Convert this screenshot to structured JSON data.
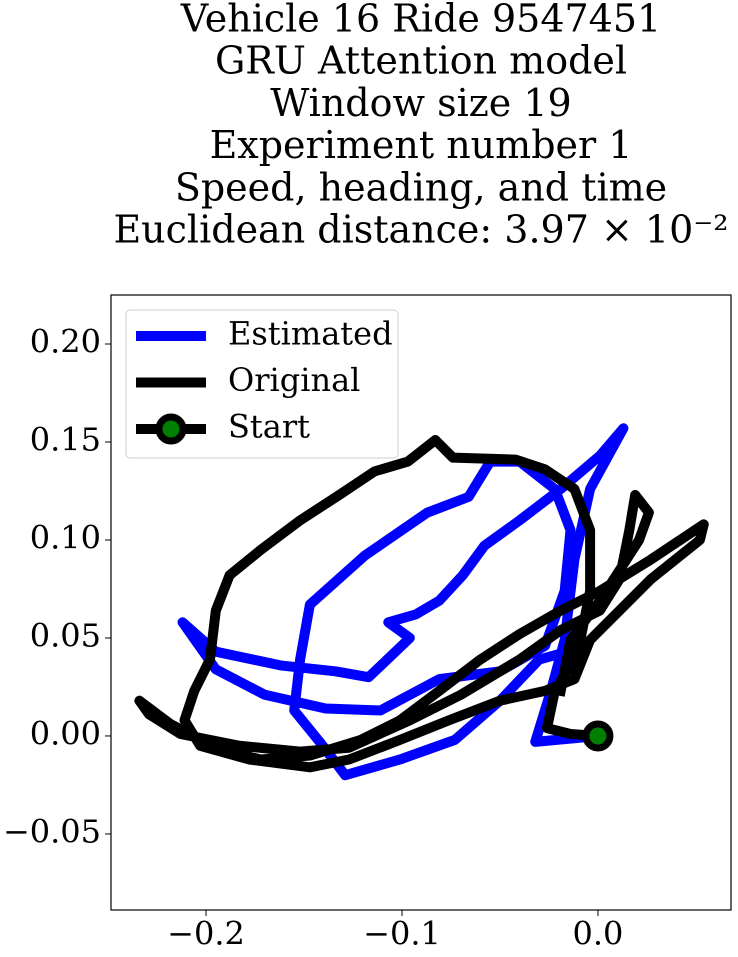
{
  "chart_data": {
    "type": "line",
    "title": [
      "Vehicle 16 Ride 9547451",
      "GRU Attention model",
      "Window size 19",
      "Experiment number 1",
      "Speed, heading, and time",
      "Euclidean distance: 3.97 × 10⁻²"
    ],
    "xlim": [
      -0.2485,
      0.0679
    ],
    "ylim": [
      -0.0888,
      0.225
    ],
    "xticks": [
      {
        "value": -0.2,
        "label": "−0.2"
      },
      {
        "value": -0.1,
        "label": "−0.1"
      },
      {
        "value": 0,
        "label": "0.0"
      }
    ],
    "yticks": [
      {
        "value": -0.05,
        "label": "−0.05"
      },
      {
        "value": 0,
        "label": "0.00"
      },
      {
        "value": 0.05,
        "label": "0.05"
      },
      {
        "value": 0.1,
        "label": "0.10"
      },
      {
        "value": 0.15,
        "label": "0.15"
      },
      {
        "value": 0.2,
        "label": "0.20"
      }
    ],
    "legend": "upper left",
    "series": [
      {
        "name": "Estimated",
        "color": "#0000ff",
        "x": [
          0,
          -0.032,
          -0.024,
          -0.017,
          -0.012,
          -0.004,
          0.013,
          0.001,
          -0.019,
          -0.04,
          -0.058,
          -0.069,
          -0.081,
          -0.093,
          -0.107,
          -0.096,
          -0.117,
          -0.134,
          -0.162,
          -0.195,
          -0.212,
          -0.195,
          -0.17,
          -0.139,
          -0.111,
          -0.081,
          -0.05,
          -0.027,
          -0.017,
          -0.014,
          -0.022,
          -0.04,
          -0.055,
          -0.066,
          -0.087,
          -0.119,
          -0.147,
          -0.152,
          -0.155,
          -0.142,
          -0.129,
          -0.101,
          -0.073,
          -0.05,
          -0.03,
          -0.012
        ],
        "y": [
          0,
          -0.003,
          0.023,
          0.049,
          0.09,
          0.126,
          0.157,
          0.143,
          0.126,
          0.11,
          0.097,
          0.082,
          0.069,
          0.062,
          0.058,
          0.05,
          0.03,
          0.033,
          0.036,
          0.043,
          0.058,
          0.034,
          0.021,
          0.014,
          0.013,
          0.029,
          0.033,
          0.046,
          0.074,
          0.105,
          0.126,
          0.14,
          0.14,
          0.122,
          0.114,
          0.092,
          0.067,
          0.039,
          0.013,
          -0.003,
          -0.02,
          -0.012,
          -0.002,
          0.018,
          0.039,
          0.044
        ]
      },
      {
        "name": "Original",
        "color": "#000000",
        "x": [
          0,
          -0.014,
          -0.026,
          -0.022,
          -0.014,
          -0.009,
          -0.004,
          -0.004,
          -0.012,
          -0.027,
          -0.042,
          -0.074,
          -0.078,
          -0.083,
          -0.097,
          -0.114,
          -0.132,
          -0.152,
          -0.172,
          -0.188,
          -0.195,
          -0.198,
          -0.206,
          -0.211,
          -0.203,
          -0.178,
          -0.147,
          -0.127,
          -0.101,
          -0.076,
          -0.05,
          -0.027,
          -0.012,
          -0.004,
          0.011,
          0.027,
          0.052,
          0.054,
          0.027,
          0.001,
          -0.019,
          -0.04,
          -0.06,
          -0.081,
          -0.101,
          -0.121,
          -0.147,
          -0.172,
          -0.193,
          -0.218,
          -0.234,
          -0.229,
          -0.213,
          -0.183,
          -0.152,
          -0.127,
          -0.096,
          -0.07,
          -0.04,
          -0.019,
          0.001,
          0.011,
          0.016,
          0.019,
          0.026,
          0.021,
          0.001,
          -0.014,
          -0.019
        ],
        "y": [
          0,
          0.001,
          0.004,
          0.023,
          0.036,
          0.049,
          0.074,
          0.105,
          0.126,
          0.136,
          0.141,
          0.142,
          0.146,
          0.151,
          0.14,
          0.135,
          0.123,
          0.11,
          0.095,
          0.082,
          0.064,
          0.039,
          0.023,
          0.008,
          -0.005,
          -0.012,
          -0.016,
          -0.012,
          -0.002,
          0.008,
          0.018,
          0.023,
          0.029,
          0.049,
          0.064,
          0.08,
          0.1,
          0.108,
          0.09,
          0.074,
          0.064,
          0.052,
          0.039,
          0.023,
          0.008,
          -0.002,
          -0.01,
          -0.012,
          -0.007,
          0.006,
          0.018,
          0.011,
          0.001,
          -0.005,
          -0.008,
          -0.006,
          0.008,
          0.021,
          0.039,
          0.054,
          0.064,
          0.08,
          0.105,
          0.123,
          0.114,
          0.1,
          0.069,
          0.049,
          0.023
        ]
      },
      {
        "name": "Start",
        "color": "#000000",
        "marker_color": "#008000",
        "x": [
          0
        ],
        "y": [
          0
        ]
      }
    ]
  }
}
